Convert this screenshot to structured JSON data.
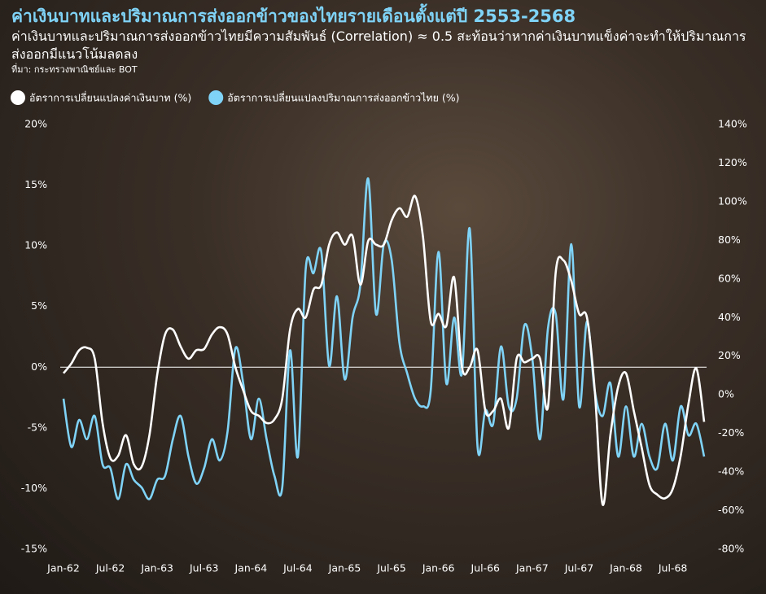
{
  "chart_data": {
    "type": "line",
    "title": "ค่าเงินบาทและปริมาณการส่งออกข้าวของไทยรายเดือนตั้งแต่ปี 2553-2568",
    "subtitle": "ค่าเงินบาทและปริมาณการส่งออกข้าวไทยมีความสัมพันธ์ (Correlation) ≈ 0.5 สะท้อนว่าหากค่าเงินบาทแข็งค่าจะทำให้ปริมาณการส่งออกมีแนวโน้มลดลง",
    "source": "ที่มา: กระทรวงพาณิชย์และ BOT",
    "categories": [
      "Jan-62",
      null,
      null,
      null,
      null,
      null,
      "Jul-62",
      null,
      null,
      null,
      null,
      null,
      "Jan-63",
      null,
      null,
      null,
      null,
      null,
      "Jul-63",
      null,
      null,
      null,
      null,
      null,
      "Jan-64",
      null,
      null,
      null,
      null,
      null,
      "Jul-64",
      null,
      null,
      null,
      null,
      null,
      "Jan-65",
      null,
      null,
      null,
      null,
      null,
      "Jul-65",
      null,
      null,
      null,
      null,
      null,
      "Jan-66",
      null,
      null,
      null,
      null,
      null,
      "Jul-66",
      null,
      null,
      null,
      null,
      null,
      "Jan-67",
      null,
      null,
      null,
      null,
      null,
      "Jul-67",
      null,
      null,
      null,
      null,
      null,
      "Jan-68",
      null,
      null,
      null,
      null,
      null,
      "Jul-68",
      null,
      null,
      null,
      null
    ],
    "series": [
      {
        "name": "อัตราการเปลี่ยนแปลงค่าเงินบาท (%)",
        "color": "#ffffff",
        "axis": "y",
        "values": [
          -0.5,
          0.3,
          1.4,
          1.6,
          0.7,
          -4.6,
          -7.5,
          -7.3,
          -5.6,
          -8,
          -8.2,
          -5.6,
          -0.6,
          2.7,
          3.1,
          1.7,
          0.7,
          1.4,
          1.5,
          2.7,
          3.3,
          2.7,
          0,
          -1.9,
          -3.6,
          -4,
          -4.6,
          -4.3,
          -2.6,
          3.1,
          4.8,
          4.1,
          6.4,
          6.8,
          10.1,
          11.1,
          10.1,
          10.8,
          6.8,
          10.4,
          10.1,
          10.1,
          12.1,
          13.1,
          12.4,
          14.1,
          10.8,
          3.8,
          4.4,
          3.4,
          7.4,
          0,
          0,
          1.4,
          -3.6,
          -3.6,
          -2.6,
          -5,
          0.7,
          0.4,
          0.7,
          0.7,
          -3.3,
          7.8,
          8.8,
          7.1,
          4.4,
          4.1,
          -1.9,
          -11.3,
          -5.6,
          -1.6,
          -0.5,
          -3.6,
          -6.6,
          -9.7,
          -10.5,
          -10.8,
          -10,
          -7.3,
          -3,
          -0.1,
          -4.5
        ]
      },
      {
        "name": "อัตราการเปลี่ยนแปลงปริมาณการส่งออกข้าวไทย (%)",
        "color": "#7fd3f7",
        "axis": "y2",
        "values": [
          -2,
          -27,
          -13,
          -23,
          -11,
          -36,
          -38,
          -54,
          -36,
          -44,
          -48,
          -54,
          -44,
          -42,
          -23,
          -11,
          -32,
          -46,
          -38,
          -23,
          -34,
          -19,
          24,
          6,
          -23,
          -2,
          -23,
          -42,
          -48,
          23,
          -32,
          65,
          63,
          74,
          15,
          51,
          8,
          40,
          57,
          112,
          42,
          78,
          70,
          27,
          11,
          -2,
          -6,
          2,
          74,
          6,
          40,
          11,
          86,
          -27,
          -8,
          -15,
          25,
          -6,
          -2,
          36,
          19,
          -23,
          34,
          42,
          -2,
          78,
          -6,
          38,
          2,
          -11,
          6,
          -32,
          -6,
          -32,
          -15,
          -32,
          -38,
          -15,
          -34,
          -6,
          -21,
          -15,
          -32
        ]
      }
    ],
    "ylim": [
      -15,
      20
    ],
    "yticks": [
      {
        "value": -15,
        "label": "-15%"
      },
      {
        "value": -10,
        "label": "-10%"
      },
      {
        "value": -5,
        "label": "-5%"
      },
      {
        "value": 0,
        "label": "0%"
      },
      {
        "value": 5,
        "label": "5%"
      },
      {
        "value": 10,
        "label": "10%"
      },
      {
        "value": 15,
        "label": "15%"
      },
      {
        "value": 20,
        "label": "20%"
      }
    ],
    "y2lim": [
      -80,
      140
    ],
    "y2ticks": [
      {
        "value": -80,
        "label": "-80%"
      },
      {
        "value": -60,
        "label": "-60%"
      },
      {
        "value": -40,
        "label": "-40%"
      },
      {
        "value": -20,
        "label": "-20%"
      },
      {
        "value": 0,
        "label": "0%"
      },
      {
        "value": 20,
        "label": "20%"
      },
      {
        "value": 40,
        "label": "40%"
      },
      {
        "value": 60,
        "label": "60%"
      },
      {
        "value": 80,
        "label": "80%"
      },
      {
        "value": 100,
        "label": "100%"
      },
      {
        "value": 120,
        "label": "120%"
      },
      {
        "value": 140,
        "label": "140%"
      }
    ],
    "zero_line": true,
    "legend": "top-left"
  }
}
